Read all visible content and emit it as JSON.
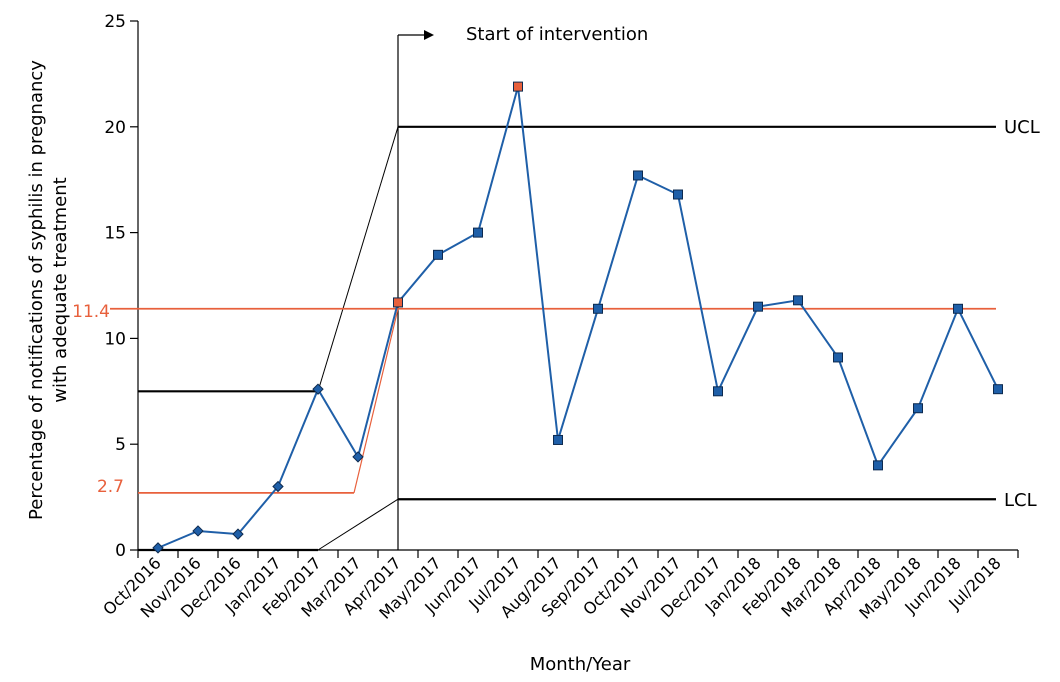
{
  "chart_data": {
    "type": "line",
    "xlabel": "Month/Year",
    "ylabel_line1": "Percentage of notifications of syphilis in pregnancy",
    "ylabel_line2": "with adequate treatment",
    "ylim": [
      0,
      25
    ],
    "yticks": [
      0,
      5,
      10,
      15,
      20,
      25
    ],
    "categories": [
      "Oct/2016",
      "Nov/2016",
      "Dec/2016",
      "Jan/2017",
      "Feb/2017",
      "Mar/2017",
      "Apr/2017",
      "May/2017",
      "Jun/2017",
      "Jul/2017",
      "Aug/2017",
      "Sep/2017",
      "Oct/2017",
      "Nov/2017",
      "Dec/2017",
      "Jan/2018",
      "Feb/2018",
      "Mar/2018",
      "Apr/2018",
      "May/2018",
      "Jun/2018",
      "Jul/2018"
    ],
    "series": [
      {
        "values": [
          0.1,
          0.9,
          0.75,
          3.0,
          7.6,
          4.4,
          11.7,
          13.95,
          15.0,
          21.9,
          5.2,
          11.4,
          17.7,
          16.8,
          7.5,
          11.5,
          11.8,
          9.1,
          4.0,
          6.7,
          11.4,
          7.6
        ],
        "color": "#1f5fa8",
        "outlier_color": "#e8603c",
        "outliers": [
          6,
          9
        ],
        "markers_baseline": "diamond",
        "markers_post": "square"
      }
    ],
    "intervention_index": 6,
    "baseline": {
      "mean": 2.7,
      "ucl": 7.5,
      "lcl": 0,
      "start": 0,
      "end": 5
    },
    "post": {
      "mean": 11.4,
      "ucl": 20,
      "lcl": 2.4
    },
    "mean_color": "#e8603c",
    "limit_color": "#000000",
    "labels": {
      "ucl": "UCL",
      "lcl": "LCL",
      "mean_post": "11.4",
      "mean_baseline": "2.7",
      "intervention": "Start of intervention"
    }
  }
}
